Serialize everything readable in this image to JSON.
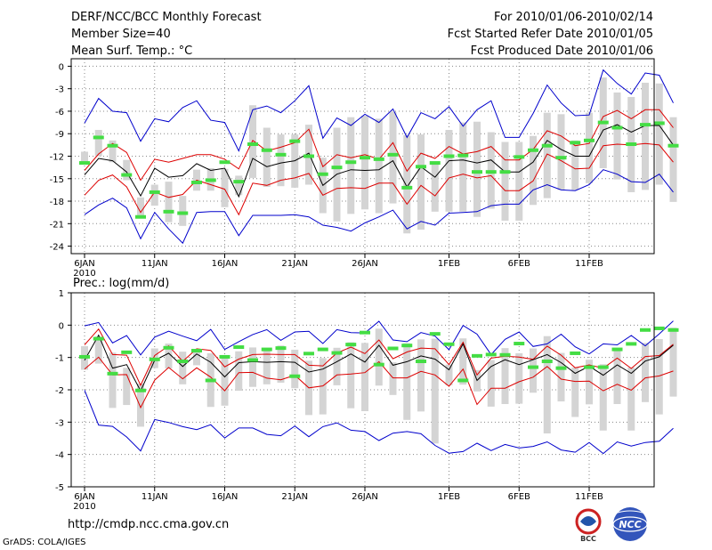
{
  "header": {
    "title": "DERF/NCC/BCC Monthly Forecast",
    "member_size": "Member Size=40",
    "variable_top": "Mean Surf. Temp.: °C",
    "period": "For 2010/01/06-2010/02/14",
    "started": "Fcst Started Refer Date 2010/01/05",
    "produced": "Fcst Produced Date 2010/01/06"
  },
  "footer": {
    "url": "http://cmdp.ncc.cma.gov.cn",
    "grads": "GrADS: COLA/IGES",
    "logo_left": "BCC",
    "logo_right": "NCC"
  },
  "colors": {
    "envelope": "#0000cc",
    "spread": "#dd0000",
    "mean": "#000000",
    "median": "#44dd44",
    "box": "#d4d4d4",
    "grid": "#888888"
  },
  "chart_data": [
    {
      "type": "line",
      "title": "Mean Surf. Temp.: °C",
      "x_tick_labels": [
        "6JAN",
        "11JAN",
        "16JAN",
        "21JAN",
        "26JAN",
        "1FEB",
        "6FEB",
        "11FEB"
      ],
      "x_tick_days": [
        1,
        6,
        11,
        16,
        21,
        27,
        32,
        37
      ],
      "year_label": "2010",
      "ylim": [
        -25,
        1
      ],
      "y_ticks": [
        0,
        -3,
        -6,
        -9,
        -12,
        -15,
        -18,
        -21,
        -24
      ],
      "y_tick_labels": [
        "0",
        "-3",
        "-6",
        "-9",
        "-12",
        "-15",
        "-18",
        "-21",
        "-24"
      ],
      "max": [
        -7.6,
        -4.3,
        -6,
        -6.2,
        -10,
        -7,
        -7.4,
        -5.5,
        -4.6,
        -7.2,
        -7.5,
        -11.3,
        -5.8,
        -5.3,
        -6.2,
        -4.6,
        -2.6,
        -9.6,
        -6.9,
        -7.9,
        -6.4,
        -7.5,
        -5.7,
        -9.5,
        -6.2,
        -7,
        -5.4,
        -8,
        -5.8,
        -4.6,
        -9.5,
        -9.5,
        -6.3,
        -2.5,
        -4.9,
        -6.6,
        -6.5,
        -0.5,
        -2.3,
        -3.7,
        -0.9,
        -1.2,
        -4.9
      ],
      "upper": [
        -13.9,
        -11.7,
        -10.3,
        -11.5,
        -15.2,
        -12.4,
        -12.8,
        -12.3,
        -11.8,
        -11.8,
        -12.4,
        -13.7,
        -9.9,
        -11.3,
        -10.8,
        -10.2,
        -8.4,
        -13.4,
        -11.8,
        -12.2,
        -11.8,
        -12.4,
        -10.2,
        -14,
        -11.6,
        -12.3,
        -10.7,
        -11.7,
        -11.4,
        -10.7,
        -12.5,
        -12.5,
        -11.1,
        -8.6,
        -9.3,
        -10.6,
        -10.3,
        -6.7,
        -5.9,
        -7,
        -5.8,
        -5.8,
        -8.2
      ],
      "mean": [
        -14.5,
        -12.3,
        -12.6,
        -14.1,
        -17.3,
        -13.6,
        -14.8,
        -14.6,
        -13,
        -13.9,
        -13.6,
        -17.4,
        -12.3,
        -13.4,
        -12.9,
        -12.6,
        -11.6,
        -15.9,
        -14.4,
        -13.8,
        -13.9,
        -13.8,
        -12.6,
        -16.1,
        -13.4,
        -14.8,
        -12.6,
        -12.5,
        -12.9,
        -12.5,
        -14.1,
        -14.1,
        -12.8,
        -9.9,
        -11.1,
        -12,
        -12,
        -8.5,
        -7.8,
        -8.8,
        -7.9,
        -7.9,
        -10.5
      ],
      "lower": [
        -17.2,
        -15.2,
        -14.5,
        -16.1,
        -19.5,
        -16.8,
        -17.5,
        -17.1,
        -15.2,
        -15.8,
        -16.4,
        -19.8,
        -15.6,
        -15.9,
        -15.2,
        -14.9,
        -14.3,
        -17.2,
        -16.3,
        -16.2,
        -16.3,
        -15.6,
        -15.6,
        -18.4,
        -15.9,
        -17.3,
        -14.9,
        -14.4,
        -14.9,
        -14.6,
        -16.6,
        -16.6,
        -15.3,
        -11.7,
        -12.6,
        -13.7,
        -13.6,
        -10.6,
        -10.4,
        -10.5,
        -10.3,
        -10.5,
        -12.8
      ],
      "min": [
        -19.8,
        -18.5,
        -17.6,
        -18.9,
        -23,
        -19.5,
        -21.7,
        -23.6,
        -19.5,
        -19.4,
        -19.4,
        -22.6,
        -19.9,
        -19.9,
        -19.9,
        -19.8,
        -20.1,
        -21.2,
        -21.5,
        -22,
        -20.9,
        -20.1,
        -19.2,
        -21.7,
        -20.7,
        -21.2,
        -19.6,
        -19.5,
        -19.4,
        -18.6,
        -18.4,
        -18.4,
        -16.5,
        -15.8,
        -16.5,
        -16.6,
        -15.8,
        -13.8,
        -14.4,
        -15.4,
        -15.5,
        -14.4,
        -16.8
      ],
      "box_top": [
        -11.4,
        -8.5,
        -9.9,
        -12.5,
        -17.5,
        -15.8,
        -15.4,
        -17.3,
        -13.8,
        -13.6,
        -13.7,
        -14.6,
        -5.2,
        -8.2,
        -9.1,
        -9.1,
        -7.8,
        -12.2,
        -8.2,
        -6.8,
        -6.6,
        -7,
        -6.1,
        -9.2,
        -9.1,
        -13.1,
        -8.5,
        -7.5,
        -7.4,
        -8.8,
        -10.1,
        -10.1,
        -9.3,
        -6.2,
        -6.4,
        -9.9,
        -6.2,
        -1.5,
        -3.5,
        -4.1,
        -2.2,
        -2.3,
        -6.8
      ],
      "box_bottom": [
        -13.1,
        -12,
        -12.8,
        -15.2,
        -20.3,
        -18.6,
        -20.8,
        -21.3,
        -16.6,
        -16.6,
        -18.8,
        -17.2,
        -14.9,
        -16.1,
        -16,
        -16.2,
        -15.8,
        -19.6,
        -20.7,
        -19.7,
        -19.1,
        -19.6,
        -18.3,
        -22.3,
        -21.8,
        -19.4,
        -19.4,
        -19.4,
        -20.1,
        -19,
        -20.6,
        -20.6,
        -18.5,
        -17.6,
        -16.5,
        -16.5,
        -15.6,
        -13.6,
        -15.1,
        -16.8,
        -16.5,
        -15.8,
        -18.1
      ],
      "median": [
        -12.9,
        -9.5,
        -10.6,
        -14.5,
        -20.1,
        -16.8,
        -19.4,
        -19.6,
        -15.5,
        -15.2,
        -12.8,
        -15.4,
        -10.4,
        -11.2,
        -11.8,
        -10,
        -12,
        -14.4,
        -13.5,
        -12.8,
        -12.2,
        -12.4,
        -11.8,
        -16.2,
        -13.4,
        -12.9,
        -12,
        -11.9,
        -14.1,
        -14.1,
        -14.1,
        -12.1,
        -11.2,
        -10.6,
        -12.2,
        -10.2,
        -9.9,
        -7.5,
        -8.2,
        -10.4,
        -7.8,
        -7.6,
        -10.6
      ]
    },
    {
      "type": "line",
      "title": "Prec.: log(mm/d)",
      "x_tick_labels": [
        "6JAN",
        "11JAN",
        "16JAN",
        "21JAN",
        "26JAN",
        "1FEB",
        "6FEB",
        "11FEB"
      ],
      "x_tick_days": [
        1,
        6,
        11,
        16,
        21,
        27,
        32,
        37
      ],
      "year_label": "2010",
      "ylim": [
        -5,
        1
      ],
      "y_ticks": [
        1,
        0,
        -1,
        -2,
        -3,
        -4,
        -5
      ],
      "y_tick_labels": [
        "1",
        "0",
        "-1",
        "-2",
        "-3",
        "-4",
        "-5"
      ],
      "max": [
        -0.02,
        0.08,
        -0.55,
        -0.32,
        -0.92,
        -0.37,
        -0.19,
        -0.34,
        -0.48,
        -0.13,
        -0.75,
        -0.51,
        -0.29,
        -0.14,
        -0.47,
        -0.21,
        -0.19,
        -0.57,
        -0.14,
        -0.23,
        -0.24,
        0.12,
        -0.46,
        -0.51,
        -0.23,
        -0.34,
        -0.76,
        -0.01,
        -0.28,
        -0.91,
        -0.44,
        -0.21,
        -0.66,
        -0.58,
        -0.28,
        -0.67,
        -0.89,
        -0.58,
        -0.61,
        -0.32,
        -0.64,
        -0.27,
        0.13
      ],
      "upper": [
        -0.61,
        -0.12,
        -0.91,
        -0.93,
        -1.86,
        -0.94,
        -0.64,
        -1.12,
        -0.73,
        -0.78,
        -1.29,
        -1.05,
        -0.91,
        -0.9,
        -0.91,
        -0.91,
        -1.24,
        -1.26,
        -0.86,
        -0.68,
        -0.88,
        -0.46,
        -1.04,
        -0.83,
        -0.71,
        -0.73,
        -1.22,
        -0.53,
        -1.54,
        -1.02,
        -0.96,
        -0.99,
        -1.06,
        -0.65,
        -0.93,
        -1.32,
        -1.23,
        -1.33,
        -1.02,
        -1.34,
        -0.97,
        -0.94,
        -0.59
      ],
      "mean": [
        -1.09,
        -0.31,
        -1.33,
        -1.22,
        -2.03,
        -1.09,
        -0.87,
        -1.28,
        -0.89,
        -1.15,
        -1.6,
        -1.16,
        -1.13,
        -1.15,
        -1.13,
        -1.15,
        -1.45,
        -1.36,
        -1.13,
        -0.89,
        -1.14,
        -0.62,
        -1.24,
        -1.13,
        -0.95,
        -1.05,
        -1.38,
        -0.58,
        -1.71,
        -1.28,
        -1.07,
        -1.22,
        -1.07,
        -0.91,
        -1.16,
        -1.49,
        -1.27,
        -1.55,
        -1.23,
        -1.49,
        -1.11,
        -0.98,
        -0.62
      ],
      "lower": [
        -1.36,
        -0.99,
        -1.54,
        -1.53,
        -2.55,
        -1.7,
        -1.31,
        -1.66,
        -1.32,
        -1.61,
        -2.03,
        -1.47,
        -1.46,
        -1.64,
        -1.69,
        -1.55,
        -1.94,
        -1.88,
        -1.54,
        -1.51,
        -1.47,
        -1.13,
        -1.63,
        -1.63,
        -1.43,
        -1.54,
        -1.89,
        -1.36,
        -2.45,
        -1.95,
        -1.95,
        -1.75,
        -1.61,
        -1.28,
        -1.67,
        -1.74,
        -1.73,
        -2.03,
        -1.83,
        -2.01,
        -1.63,
        -1.57,
        -1.42
      ],
      "min": [
        -2.01,
        -3.09,
        -3.13,
        -3.46,
        -3.89,
        -2.92,
        -3.01,
        -3.14,
        -3.23,
        -3.08,
        -3.49,
        -3.18,
        -3.18,
        -3.38,
        -3.42,
        -3.12,
        -3.45,
        -3.14,
        -3.02,
        -3.25,
        -3.29,
        -3.57,
        -3.34,
        -3.29,
        -3.36,
        -3.72,
        -3.96,
        -3.91,
        -3.65,
        -3.88,
        -3.69,
        -3.8,
        -3.75,
        -3.61,
        -3.86,
        -3.93,
        -3.63,
        -3.97,
        -3.61,
        -3.74,
        -3.63,
        -3.59,
        -3.19
      ],
      "box_top": [
        -0.65,
        -0.35,
        -0.85,
        -1.32,
        -1.81,
        -0.72,
        -0.57,
        -0.82,
        -0.79,
        -0.87,
        -0.96,
        -0.81,
        -0.69,
        -0.72,
        -0.63,
        -0.76,
        -1.1,
        -1.02,
        -0.7,
        -0.53,
        -0.55,
        -0.11,
        -1.15,
        -0.56,
        -0.44,
        -0.42,
        -1.22,
        -0.41,
        -1.39,
        -1.08,
        -0.71,
        -0.87,
        -0.72,
        -0.34,
        -0.86,
        -1.31,
        -1.07,
        -1.21,
        -0.78,
        -1.31,
        -0.55,
        -0.43,
        -0.08
      ],
      "box_bottom": [
        -1.38,
        -1.19,
        -2.56,
        -2.47,
        -3.14,
        -1.33,
        -1.34,
        -1.83,
        -1.24,
        -2.53,
        -2.49,
        -2.03,
        -1.91,
        -1.83,
        -1.78,
        -1.95,
        -2.78,
        -2.76,
        -1.86,
        -2.57,
        -2.66,
        -1.87,
        -2.16,
        -2.93,
        -2.67,
        -3.66,
        -1.86,
        -1.84,
        -2.05,
        -2.52,
        -2.44,
        -2.43,
        -2.09,
        -3.35,
        -2.36,
        -2.84,
        -2.45,
        -3.26,
        -2.44,
        -3.26,
        -2.38,
        -2.76,
        -2.21
      ],
      "median": [
        -0.98,
        -0.42,
        -1.5,
        -0.84,
        -2.02,
        -1.06,
        -0.7,
        -1.12,
        -0.79,
        -1.71,
        -0.98,
        -0.68,
        -1.08,
        -0.75,
        -0.71,
        -1.58,
        -0.88,
        -0.75,
        -0.86,
        -0.6,
        -0.23,
        -1.22,
        -0.72,
        -0.63,
        -1.12,
        -0.27,
        -0.59,
        -1.71,
        -0.95,
        -0.91,
        -0.92,
        -0.57,
        -1.3,
        -1.12,
        -1.33,
        -0.87,
        -1.3,
        -1.3,
        -0.75,
        -0.58,
        -0.15,
        -0.1,
        -0.15
      ]
    }
  ]
}
